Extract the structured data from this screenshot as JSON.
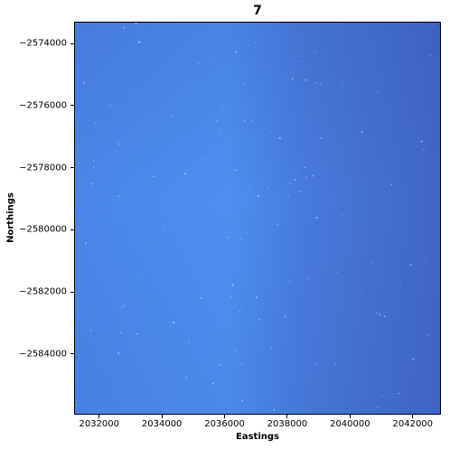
{
  "chart_data": {
    "type": "heatmap",
    "title": "7",
    "xlabel": "Eastings",
    "ylabel": "Northings",
    "xlim": [
      2031200,
      2042900
    ],
    "ylim": [
      -2585950,
      -2573300
    ],
    "x_ticks": [
      2032000,
      2034000,
      2036000,
      2038000,
      2040000,
      2042000
    ],
    "x_tick_labels": [
      "2032000",
      "2034000",
      "2036000",
      "2038000",
      "2040000",
      "2042000"
    ],
    "y_ticks": [
      -2574000,
      -2576000,
      -2578000,
      -2580000,
      -2582000,
      -2584000
    ],
    "y_tick_labels": [
      "−2574000",
      "−2576000",
      "−2578000",
      "−2580000",
      "−2582000",
      "−2584000"
    ],
    "grid": false,
    "colors": {
      "light_blue": "#4d90f0",
      "mid_blue": "#4a84e4",
      "dark_blue": "#3f66c6",
      "speckle": "#cfe3ff"
    }
  }
}
